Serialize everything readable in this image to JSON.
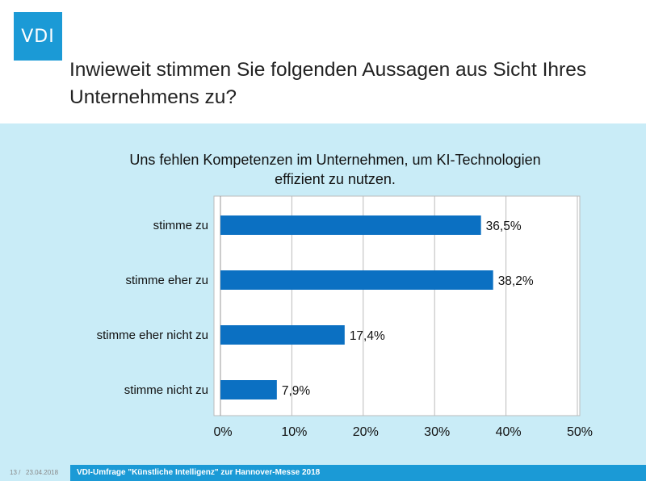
{
  "logo": "VDI",
  "title": "Inwieweit stimmen Sie folgenden Aussagen aus Sicht Ihres Unternehmens zu?",
  "footer": {
    "page": "13 /",
    "date": "23.04.2018",
    "text": "VDI-Umfrage \"Künstliche Intelligenz\" zur Hannover-Messe 2018"
  },
  "colors": {
    "brand": "#1b9ad6",
    "bar": "#0b70c2",
    "background": "#c9ecf7"
  },
  "chart_data": {
    "type": "bar",
    "orientation": "horizontal",
    "title": "Uns fehlen Kompetenzen im Unternehmen, um KI-Technologien effizient zu nutzen.",
    "categories": [
      "stimme zu",
      "stimme eher zu",
      "stimme eher nicht zu",
      "stimme nicht zu"
    ],
    "values": [
      36.5,
      38.2,
      17.4,
      7.9
    ],
    "data_labels": [
      "36,5%",
      "38,2%",
      "17,4%",
      "7,9%"
    ],
    "xlim": [
      0,
      50
    ],
    "xticks": [
      "0%",
      "10%",
      "20%",
      "30%",
      "40%",
      "50%"
    ],
    "grid": true
  }
}
